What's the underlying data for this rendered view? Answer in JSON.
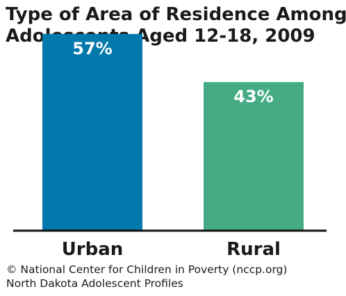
{
  "chart_data": {
    "type": "bar",
    "title_lines": [
      "Type of Area of Residence Among",
      "Adolescents Aged 12-18, 2009"
    ],
    "categories": [
      "Urban",
      "Rural"
    ],
    "values": [
      57,
      43
    ],
    "value_labels": [
      "57%",
      "43%"
    ],
    "colors": [
      "#0278ad",
      "#44ab84"
    ],
    "ylim": [
      0,
      60
    ],
    "grid": false,
    "legend": "none"
  },
  "footer": {
    "line1": "© National Center for Children in Poverty (nccp.org)",
    "line2": "North Dakota Adolescent Profiles"
  }
}
